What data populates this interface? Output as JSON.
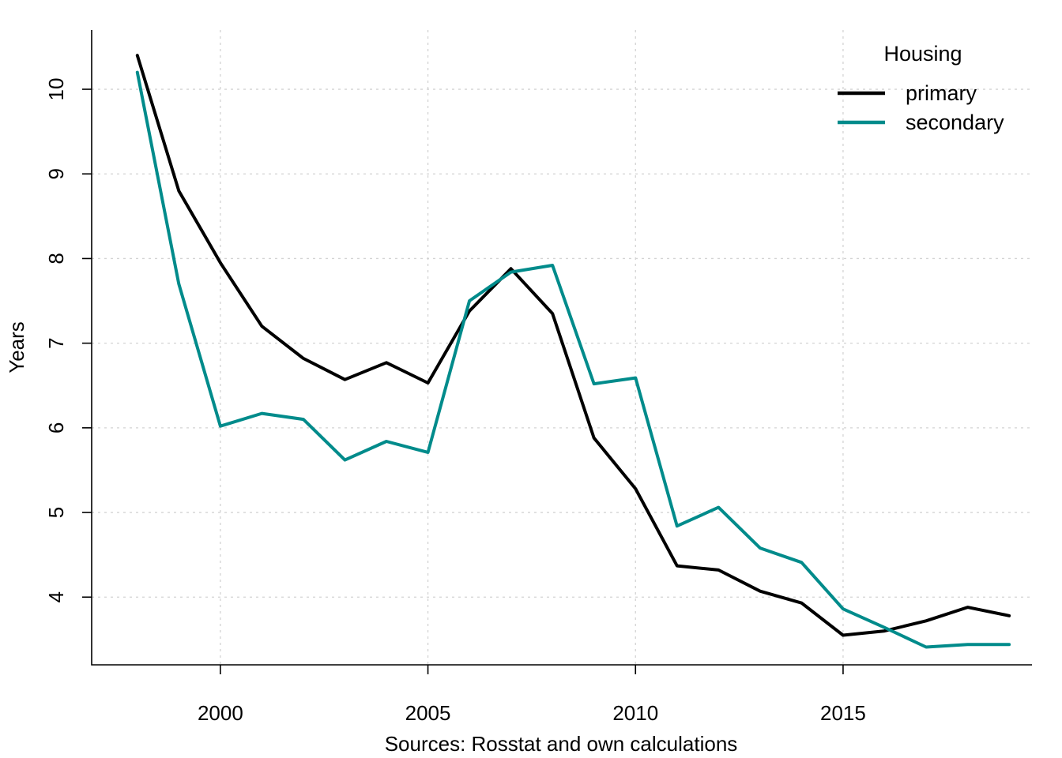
{
  "chart_data": {
    "type": "line",
    "title": "",
    "xlabel": "Sources: Rosstat and own calculations",
    "ylabel": "Years",
    "x": [
      1998,
      1999,
      2000,
      2001,
      2002,
      2003,
      2004,
      2005,
      2006,
      2007,
      2008,
      2009,
      2010,
      2011,
      2012,
      2013,
      2014,
      2015,
      2016,
      2017,
      2018,
      2019
    ],
    "series": [
      {
        "name": "primary",
        "color": "#000000",
        "values": [
          10.4,
          8.8,
          7.95,
          7.2,
          6.82,
          6.57,
          6.77,
          6.53,
          7.38,
          7.88,
          7.35,
          5.88,
          5.28,
          4.37,
          4.32,
          4.07,
          3.93,
          3.55,
          3.6,
          3.72,
          3.88,
          3.78
        ]
      },
      {
        "name": "secondary",
        "color": "#008B8B",
        "values": [
          10.2,
          7.7,
          6.02,
          6.17,
          6.1,
          5.62,
          5.84,
          5.71,
          7.5,
          7.84,
          7.92,
          6.52,
          6.59,
          4.84,
          5.06,
          4.58,
          4.41,
          3.86,
          3.64,
          3.41,
          3.44,
          3.44
        ]
      }
    ],
    "xlim": [
      1996.9,
      2019.55
    ],
    "ylim": [
      3.2,
      10.7
    ],
    "x_ticks": [
      "2000",
      "2005",
      "2010",
      "2015"
    ],
    "y_ticks": [
      "4",
      "5",
      "6",
      "7",
      "8",
      "9",
      "10"
    ],
    "grid": true,
    "legend": {
      "title": "Housing",
      "position": "top-right",
      "entries": [
        "primary",
        "secondary"
      ]
    }
  }
}
